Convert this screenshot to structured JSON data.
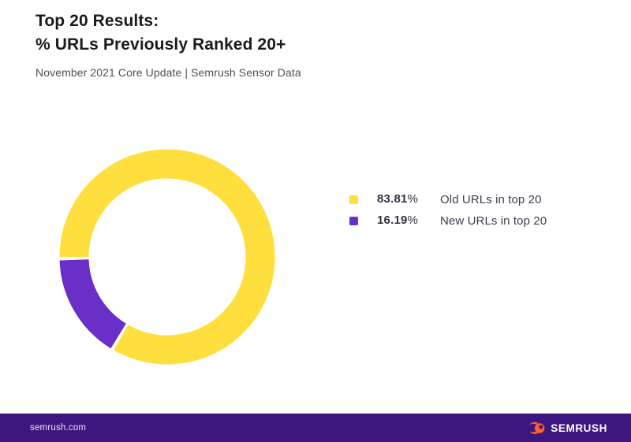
{
  "header": {
    "title_line1": "Top 20 Results:",
    "title_line2": "% URLs Previously Ranked 20+",
    "subtitle": "November 2021 Core Update | Semrush Sensor Data"
  },
  "chart_data": {
    "type": "pie",
    "donut": true,
    "title": "Top 20 Results: % URLs Previously Ranked 20+",
    "subtitle": "November 2021 Core Update | Semrush Sensor Data",
    "legend_position": "right",
    "start_angle_deg_clockwise_from_top": 269,
    "segment_gap_deg": 1.8,
    "slices": [
      {
        "label": "Old URLs in top 20",
        "value": 83.81,
        "color": "#FFDF3D"
      },
      {
        "label": "New URLs in top 20",
        "value": 16.19,
        "color": "#6A2FC9"
      }
    ]
  },
  "legend": {
    "items": [
      {
        "value": "83.81",
        "percent_sign": "%",
        "label": "Old URLs in top 20",
        "color": "#FFDF3D"
      },
      {
        "value": "16.19",
        "percent_sign": "%",
        "label": "New URLs in top 20",
        "color": "#6A2FC9"
      }
    ]
  },
  "footer": {
    "website": "semrush.com",
    "brand": "SEMRUSH",
    "bar_color": "#3d177f",
    "logo_orange": "#FF642D"
  }
}
